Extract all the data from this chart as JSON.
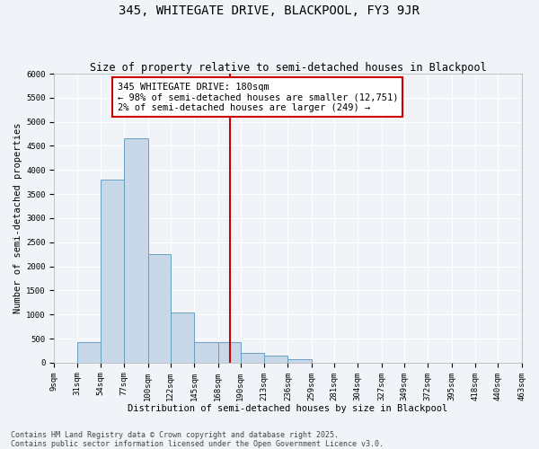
{
  "title": "345, WHITEGATE DRIVE, BLACKPOOL, FY3 9JR",
  "subtitle": "Size of property relative to semi-detached houses in Blackpool",
  "xlabel": "Distribution of semi-detached houses by size in Blackpool",
  "ylabel": "Number of semi-detached properties",
  "bins": [
    9,
    31,
    54,
    77,
    100,
    122,
    145,
    168,
    190,
    213,
    236,
    259,
    281,
    304,
    327,
    349,
    372,
    395,
    418,
    440,
    463
  ],
  "bin_labels": [
    "9sqm",
    "31sqm",
    "54sqm",
    "77sqm",
    "100sqm",
    "122sqm",
    "145sqm",
    "168sqm",
    "190sqm",
    "213sqm",
    "236sqm",
    "259sqm",
    "281sqm",
    "304sqm",
    "327sqm",
    "349sqm",
    "372sqm",
    "395sqm",
    "418sqm",
    "440sqm",
    "463sqm"
  ],
  "counts": [
    0,
    430,
    3800,
    4650,
    2250,
    1050,
    430,
    430,
    200,
    150,
    80,
    0,
    0,
    0,
    0,
    0,
    0,
    0,
    0,
    0
  ],
  "bar_color": "#c8d8e8",
  "bar_edge_color": "#6a9fc0",
  "property_size": 180,
  "property_line_color": "#cc0000",
  "annotation_text": "345 WHITEGATE DRIVE: 180sqm\n← 98% of semi-detached houses are smaller (12,751)\n2% of semi-detached houses are larger (249) →",
  "annotation_box_color": "#ffffff",
  "annotation_border_color": "#cc0000",
  "ylim": [
    0,
    6000
  ],
  "yticks": [
    0,
    500,
    1000,
    1500,
    2000,
    2500,
    3000,
    3500,
    4000,
    4500,
    5000,
    5500,
    6000
  ],
  "footer_text": "Contains HM Land Registry data © Crown copyright and database right 2025.\nContains public sector information licensed under the Open Government Licence v3.0.",
  "background_color": "#f0f4f8",
  "plot_background_color": "#f0f4f8",
  "grid_color": "#ffffff",
  "title_fontsize": 10,
  "subtitle_fontsize": 8.5,
  "axis_label_fontsize": 7.5,
  "tick_fontsize": 6.5,
  "annotation_fontsize": 7.5,
  "footer_fontsize": 6
}
